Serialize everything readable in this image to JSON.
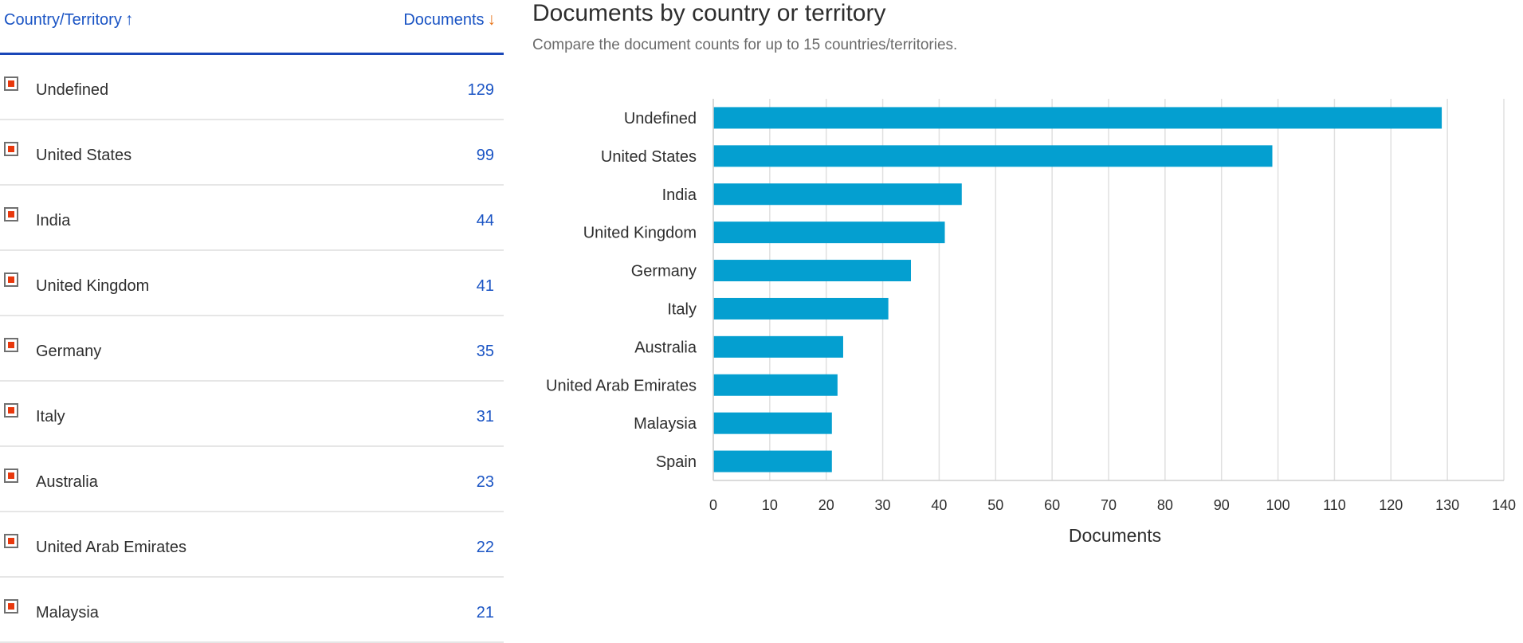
{
  "table": {
    "country_header": "Country/Territory",
    "documents_header": "Documents",
    "rows": [
      {
        "label": "Undefined",
        "count": "129"
      },
      {
        "label": "United States",
        "count": "99"
      },
      {
        "label": "India",
        "count": "44"
      },
      {
        "label": "United Kingdom",
        "count": "41"
      },
      {
        "label": "Germany",
        "count": "35"
      },
      {
        "label": "Italy",
        "count": "31"
      },
      {
        "label": "Australia",
        "count": "23"
      },
      {
        "label": "United Arab Emirates",
        "count": "22"
      },
      {
        "label": "Malaysia",
        "count": "21"
      }
    ]
  },
  "colors": {
    "bar": "#049fd0",
    "link": "#1a54c4",
    "accent_orange": "#e8751a",
    "checkbox_fill": "#e8380d",
    "header_rule": "#1a47b8"
  },
  "icons": {
    "sort_up": "arrow-up-icon",
    "sort_down": "arrow-down-icon",
    "checkbox": "checkbox-checked-icon"
  },
  "chart_data": {
    "type": "bar",
    "orientation": "horizontal",
    "title": "Documents by country or territory",
    "subtitle": "Compare the document counts for up to 15 countries/territories.",
    "categories": [
      "Undefined",
      "United States",
      "India",
      "United Kingdom",
      "Germany",
      "Italy",
      "Australia",
      "United Arab Emirates",
      "Malaysia",
      "Spain"
    ],
    "values": [
      129,
      99,
      44,
      41,
      35,
      31,
      23,
      22,
      21,
      21
    ],
    "xlabel": "Documents",
    "ylabel": "",
    "xlim": [
      0,
      140
    ],
    "xticks": [
      0,
      10,
      20,
      30,
      40,
      50,
      60,
      70,
      80,
      90,
      100,
      110,
      120,
      130,
      140
    ],
    "grid": true
  }
}
